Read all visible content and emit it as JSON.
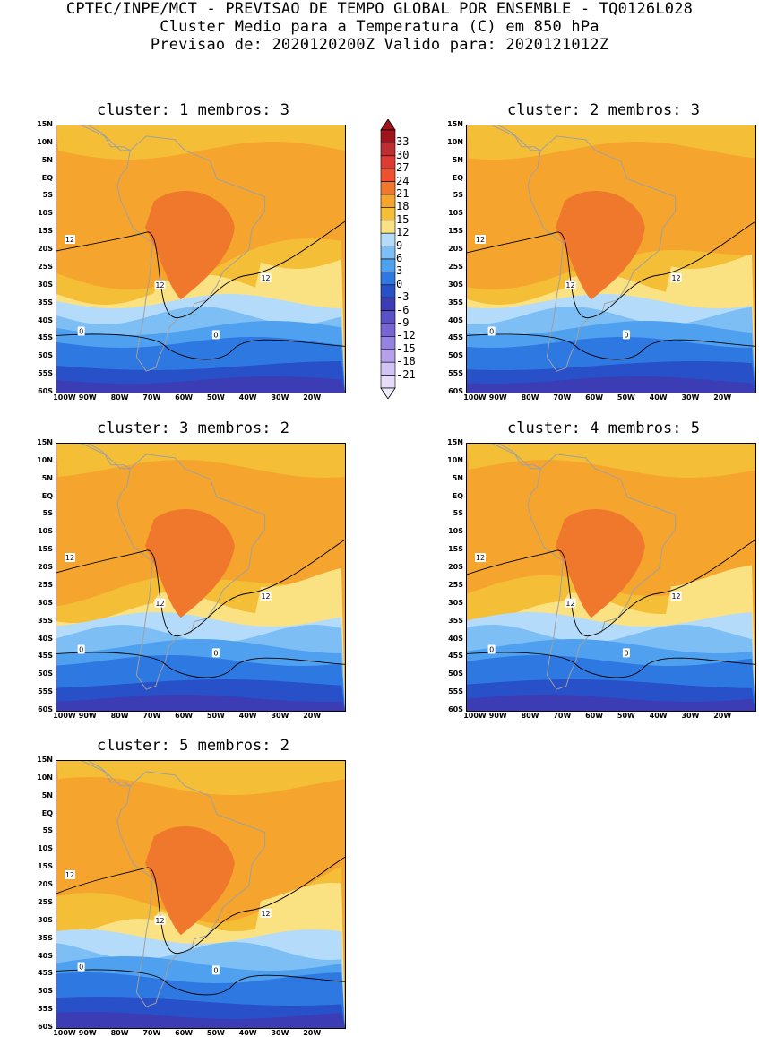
{
  "header": {
    "line1": "CPTEC/INPE/MCT - PREVISAO DE TEMPO GLOBAL POR ENSEMBLE - TQ0126L028",
    "line2": "Cluster Medio para a Temperatura (C) em 850 hPa",
    "line3": "Previsao de: 2020120200Z   Valido para: 2020121012Z"
  },
  "panels": [
    {
      "title": "cluster: 1  membros: 3"
    },
    {
      "title": "cluster: 2  membros: 3"
    },
    {
      "title": "cluster: 3  membros: 2"
    },
    {
      "title": "cluster: 4  membros: 5"
    },
    {
      "title": "cluster: 5  membros: 2"
    }
  ],
  "lat_labels": [
    "15N",
    "10N",
    "5N",
    "EQ",
    "5S",
    "10S",
    "15S",
    "20S",
    "25S",
    "30S",
    "35S",
    "40S",
    "45S",
    "50S",
    "55S",
    "60S"
  ],
  "lon_labels": [
    "100W",
    "90W",
    "80W",
    "70W",
    "60W",
    "50W",
    "40W",
    "30W",
    "20W"
  ],
  "colorbar": {
    "labels": [
      "33",
      "30",
      "27",
      "24",
      "21",
      "18",
      "15",
      "12",
      "9",
      "6",
      "3",
      "0",
      "-3",
      "-6",
      "-9",
      "-12",
      "-15",
      "-18",
      "-21"
    ],
    "colors": [
      "#a0141e",
      "#be2d32",
      "#dc3c32",
      "#f0502d",
      "#f0782d",
      "#f5a52d",
      "#f5be37",
      "#fae182",
      "#b4dcfa",
      "#7dbef5",
      "#50a0f0",
      "#2d78e1",
      "#2850c8",
      "#3c3cb4",
      "#5a50c8",
      "#7864d2",
      "#9682e1",
      "#b4a0eb",
      "#d2c3f5",
      "#e6dcfa"
    ]
  },
  "contours": {
    "twelve": "12",
    "zero": "0"
  }
}
